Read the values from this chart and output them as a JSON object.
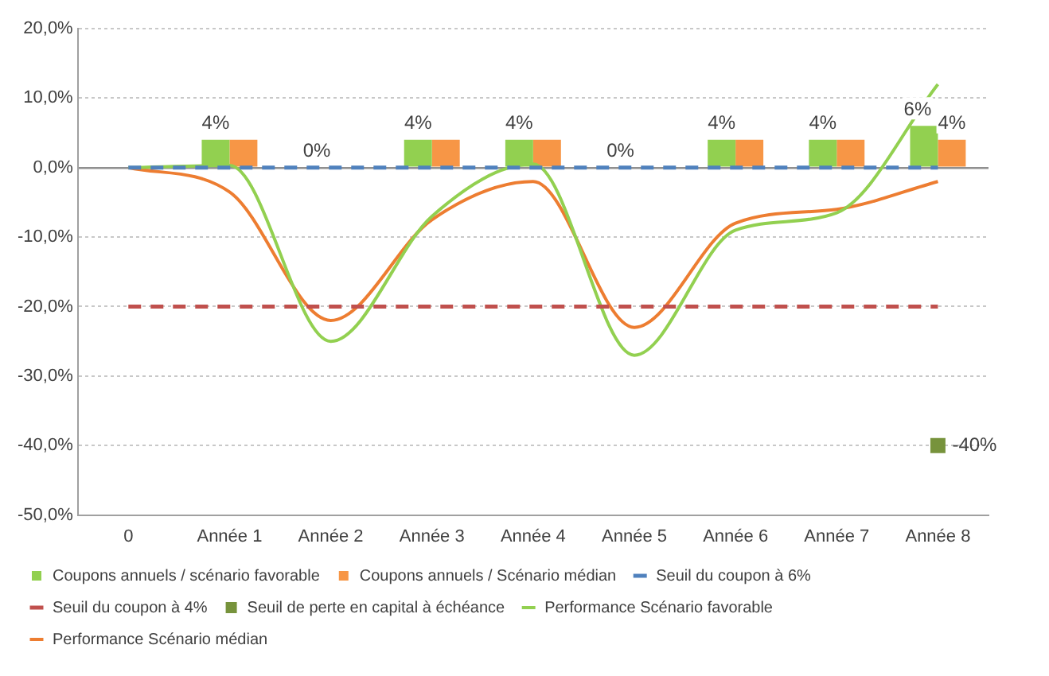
{
  "chart_data": {
    "type": "bar",
    "categories": [
      "0",
      "Année 1",
      "Année 2",
      "Année 3",
      "Année 4",
      "Année 5",
      "Année 6",
      "Année 7",
      "Année 8"
    ],
    "ylim": [
      -50,
      20
    ],
    "yticks": [
      {
        "value": -50,
        "label": "-50,0%"
      },
      {
        "value": -40,
        "label": "-40,0%"
      },
      {
        "value": -30,
        "label": "-30,0%"
      },
      {
        "value": -20,
        "label": "-20,0%"
      },
      {
        "value": -10,
        "label": "-10,0%"
      },
      {
        "value": 0,
        "label": "0,0%"
      },
      {
        "value": 10,
        "label": "10,0%"
      },
      {
        "value": 20,
        "label": "20,0%"
      }
    ],
    "grid": "y",
    "legend": "bottom",
    "series": [
      {
        "type": "bar",
        "name": "Coupons annuels / scénario favorable",
        "color": "#92d050",
        "values": [
          null,
          4,
          0,
          4,
          4,
          0,
          4,
          4,
          6
        ],
        "value_labels": [
          null,
          "4%",
          "0%",
          "4%",
          "4%",
          "0%",
          "4%",
          "4%",
          "6%"
        ]
      },
      {
        "type": "bar",
        "name": "Coupons annuels / Scénario médian",
        "color": "#f79646",
        "values": [
          null,
          4,
          0,
          4,
          4,
          0,
          4,
          4,
          4
        ],
        "value_labels": [
          null,
          null,
          null,
          null,
          null,
          null,
          null,
          null,
          "4%"
        ]
      },
      {
        "type": "line",
        "name": "Seuil du coupon à 6%",
        "color": "#4f81bd",
        "line_style": "dashed",
        "marker": "none",
        "values": [
          0,
          0,
          0,
          0,
          0,
          0,
          0,
          0,
          0
        ]
      },
      {
        "type": "line",
        "name": "Seuil du coupon à 4%",
        "color": "#c0504d",
        "line_style": "dashed",
        "marker": "none",
        "values": [
          -20,
          -20,
          -20,
          -20,
          -20,
          -20,
          -20,
          -20,
          -20
        ]
      },
      {
        "type": "scatter",
        "name": "Seuil de perte en capital à échéance",
        "color": "#77933c",
        "marker": "square",
        "x": [
          "Année 8"
        ],
        "values": [
          -40
        ],
        "value_labels": [
          "-40%"
        ]
      },
      {
        "type": "line",
        "name": "Performance Scénario favorable",
        "color": "#92d050",
        "line_style": "solid",
        "marker": "none",
        "values": [
          0,
          0.3,
          -25,
          -7,
          0.5,
          -27,
          -9,
          -6.5,
          12
        ]
      },
      {
        "type": "line",
        "name": "Performance Scénario médian",
        "color": "#ed7d31",
        "line_style": "solid",
        "marker": "none",
        "values": [
          0,
          -3.5,
          -22,
          -7.5,
          -2,
          -23,
          -8,
          -6,
          -2
        ]
      }
    ]
  }
}
